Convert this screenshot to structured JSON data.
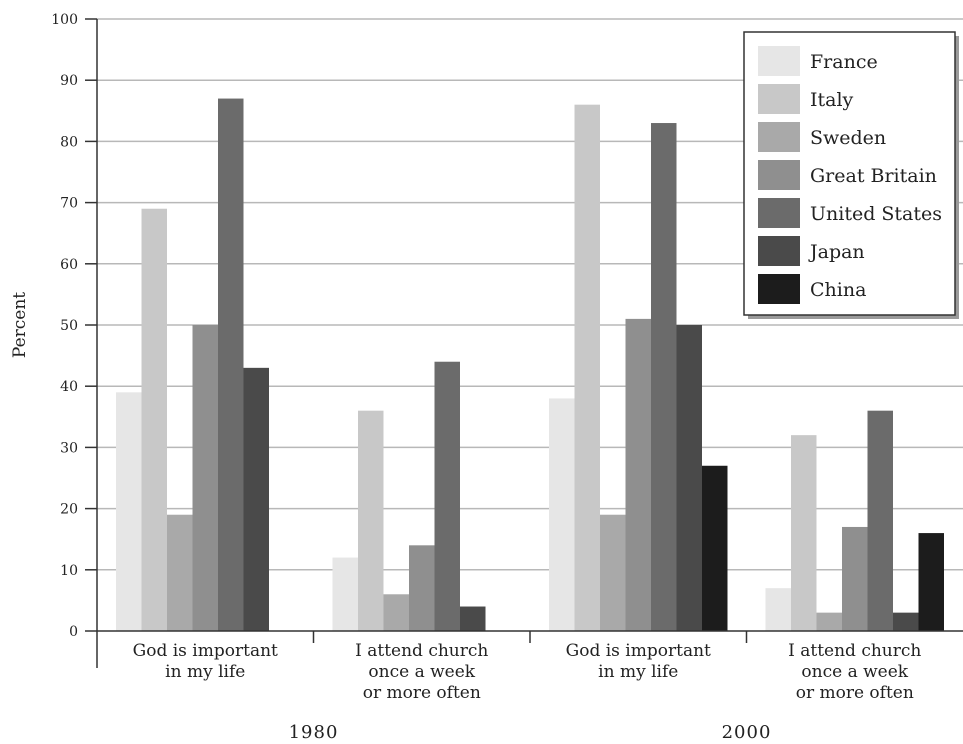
{
  "chart_data": {
    "type": "bar",
    "ylabel": "Percent",
    "ylim": [
      0,
      100
    ],
    "yticks": [
      "0",
      "10",
      "20",
      "30",
      "40",
      "50",
      "60",
      "70",
      "80",
      "90",
      "100"
    ],
    "grid": "horizontal",
    "legend_position": "top-right",
    "groups": [
      {
        "year": "1980",
        "categories": [
          {
            "label": [
              "God is important",
              "in my life"
            ]
          },
          {
            "label": [
              "I attend church",
              "once a week",
              "or more often"
            ]
          }
        ]
      },
      {
        "year": "2000",
        "categories": [
          {
            "label": [
              "God is important",
              "in my life"
            ]
          },
          {
            "label": [
              "I attend church",
              "once a week",
              "or more often"
            ]
          }
        ]
      }
    ],
    "series": [
      {
        "name": "France",
        "color": "#e6e6e6",
        "values": [
          39,
          12,
          38,
          7
        ]
      },
      {
        "name": "Italy",
        "color": "#c8c8c8",
        "values": [
          69,
          36,
          86,
          32
        ]
      },
      {
        "name": "Sweden",
        "color": "#a9a9a9",
        "values": [
          19,
          6,
          19,
          3
        ]
      },
      {
        "name": "Great Britain",
        "color": "#8f8f8f",
        "values": [
          50,
          14,
          51,
          17
        ]
      },
      {
        "name": "United States",
        "color": "#6b6b6b",
        "values": [
          87,
          44,
          83,
          36
        ]
      },
      {
        "name": "Japan",
        "color": "#4a4a4a",
        "values": [
          43,
          4,
          50,
          3
        ]
      },
      {
        "name": "China",
        "color": "#1c1c1c",
        "values": [
          null,
          null,
          27,
          16
        ]
      }
    ]
  }
}
